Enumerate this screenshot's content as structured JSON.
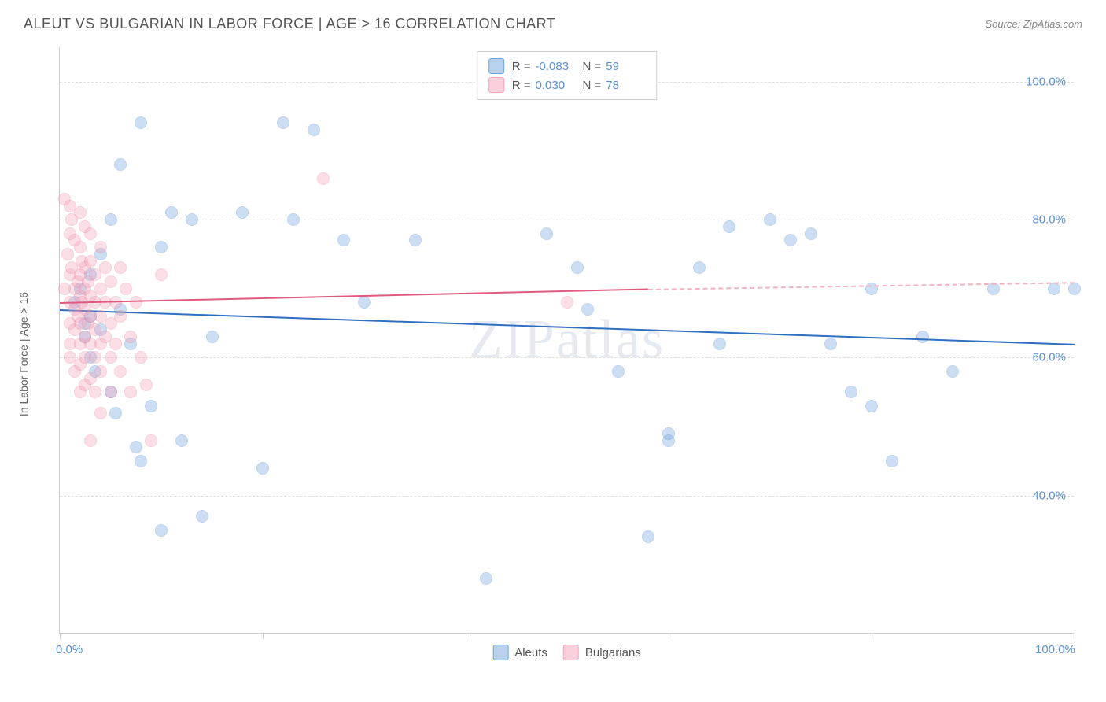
{
  "title": "ALEUT VS BULGARIAN IN LABOR FORCE | AGE > 16 CORRELATION CHART",
  "source": "Source: ZipAtlas.com",
  "watermark": "ZIPatlas",
  "chart": {
    "type": "scatter",
    "ylabel": "In Labor Force | Age > 16",
    "xlim": [
      0,
      100
    ],
    "ylim": [
      20,
      105
    ],
    "x_ticks": [
      0,
      20,
      40,
      60,
      80,
      100
    ],
    "x_tick_labels_shown": {
      "0": "0.0%",
      "100": "100.0%"
    },
    "y_gridlines": [
      40,
      60,
      80,
      100
    ],
    "y_tick_labels": {
      "40": "40.0%",
      "60": "60.0%",
      "80": "80.0%",
      "100": "100.0%"
    },
    "grid_color": "#dddddd",
    "background_color": "#ffffff",
    "axis_color": "#cccccc",
    "ylabel_fontsize": 14,
    "tick_label_color": "#5b8fd6",
    "tick_label_fontsize": 15,
    "point_radius": 8,
    "point_opacity_fill": 0.35,
    "point_opacity_stroke": 0.7,
    "series": [
      {
        "name": "Aleuts",
        "color": "#6fa3e0",
        "stroke": "#4a7fc4",
        "R": "-0.083",
        "N": "59",
        "trend": {
          "x1": 0,
          "y1": 67,
          "x2": 100,
          "y2": 62,
          "color": "#2f6fc0",
          "width": 2
        },
        "points": [
          [
            1.5,
            68
          ],
          [
            2,
            70
          ],
          [
            2.5,
            65
          ],
          [
            2.5,
            63
          ],
          [
            3,
            66
          ],
          [
            3,
            60
          ],
          [
            3,
            72
          ],
          [
            3.5,
            58
          ],
          [
            4,
            64
          ],
          [
            4,
            75
          ],
          [
            5,
            80
          ],
          [
            5,
            55
          ],
          [
            5.5,
            52
          ],
          [
            6,
            88
          ],
          [
            6,
            67
          ],
          [
            7,
            62
          ],
          [
            7.5,
            47
          ],
          [
            8,
            94
          ],
          [
            8,
            45
          ],
          [
            9,
            53
          ],
          [
            10,
            76
          ],
          [
            10,
            35
          ],
          [
            11,
            81
          ],
          [
            12,
            48
          ],
          [
            13,
            80
          ],
          [
            14,
            37
          ],
          [
            15,
            63
          ],
          [
            18,
            81
          ],
          [
            20,
            44
          ],
          [
            22,
            94
          ],
          [
            23,
            80
          ],
          [
            25,
            93
          ],
          [
            28,
            77
          ],
          [
            30,
            68
          ],
          [
            35,
            77
          ],
          [
            42,
            28
          ],
          [
            48,
            78
          ],
          [
            51,
            73
          ],
          [
            52,
            67
          ],
          [
            55,
            58
          ],
          [
            58,
            34
          ],
          [
            60,
            48
          ],
          [
            60,
            49
          ],
          [
            63,
            73
          ],
          [
            65,
            62
          ],
          [
            66,
            79
          ],
          [
            70,
            80
          ],
          [
            72,
            77
          ],
          [
            74,
            78
          ],
          [
            76,
            62
          ],
          [
            78,
            55
          ],
          [
            80,
            53
          ],
          [
            80,
            70
          ],
          [
            82,
            45
          ],
          [
            85,
            63
          ],
          [
            88,
            58
          ],
          [
            92,
            70
          ],
          [
            98,
            70
          ],
          [
            100,
            70
          ]
        ]
      },
      {
        "name": "Bulgarians",
        "color": "#f4a3b8",
        "stroke": "#e57a96",
        "R": "0.030",
        "N": "78",
        "trend_solid": {
          "x1": 0,
          "y1": 68,
          "x2": 58,
          "y2": 70,
          "color": "#e05a7e",
          "width": 2
        },
        "trend_dash": {
          "x1": 58,
          "y1": 70,
          "x2": 100,
          "y2": 71,
          "color": "#f0b3c2",
          "width": 2
        },
        "points": [
          [
            0.5,
            83
          ],
          [
            0.5,
            70
          ],
          [
            0.8,
            75
          ],
          [
            1,
            82
          ],
          [
            1,
            78
          ],
          [
            1,
            72
          ],
          [
            1,
            68
          ],
          [
            1,
            65
          ],
          [
            1,
            62
          ],
          [
            1,
            60
          ],
          [
            1.2,
            80
          ],
          [
            1.2,
            73
          ],
          [
            1.5,
            77
          ],
          [
            1.5,
            70
          ],
          [
            1.5,
            67
          ],
          [
            1.5,
            64
          ],
          [
            1.5,
            58
          ],
          [
            1.8,
            71
          ],
          [
            1.8,
            66
          ],
          [
            2,
            81
          ],
          [
            2,
            76
          ],
          [
            2,
            72
          ],
          [
            2,
            69
          ],
          [
            2,
            65
          ],
          [
            2,
            62
          ],
          [
            2,
            59
          ],
          [
            2,
            55
          ],
          [
            2.2,
            74
          ],
          [
            2.2,
            68
          ],
          [
            2.5,
            79
          ],
          [
            2.5,
            73
          ],
          [
            2.5,
            70
          ],
          [
            2.5,
            67
          ],
          [
            2.5,
            63
          ],
          [
            2.5,
            60
          ],
          [
            2.5,
            56
          ],
          [
            2.8,
            71
          ],
          [
            2.8,
            65
          ],
          [
            3,
            78
          ],
          [
            3,
            74
          ],
          [
            3,
            69
          ],
          [
            3,
            66
          ],
          [
            3,
            62
          ],
          [
            3,
            57
          ],
          [
            3,
            48
          ],
          [
            3.5,
            72
          ],
          [
            3.5,
            68
          ],
          [
            3.5,
            64
          ],
          [
            3.5,
            60
          ],
          [
            3.5,
            55
          ],
          [
            4,
            76
          ],
          [
            4,
            70
          ],
          [
            4,
            66
          ],
          [
            4,
            62
          ],
          [
            4,
            58
          ],
          [
            4,
            52
          ],
          [
            4.5,
            73
          ],
          [
            4.5,
            68
          ],
          [
            4.5,
            63
          ],
          [
            5,
            71
          ],
          [
            5,
            65
          ],
          [
            5,
            60
          ],
          [
            5,
            55
          ],
          [
            5.5,
            68
          ],
          [
            5.5,
            62
          ],
          [
            6,
            73
          ],
          [
            6,
            66
          ],
          [
            6,
            58
          ],
          [
            6.5,
            70
          ],
          [
            7,
            63
          ],
          [
            7,
            55
          ],
          [
            7.5,
            68
          ],
          [
            8,
            60
          ],
          [
            8.5,
            56
          ],
          [
            9,
            48
          ],
          [
            10,
            72
          ],
          [
            26,
            86
          ],
          [
            50,
            68
          ]
        ]
      }
    ],
    "legend_top": {
      "border_color": "#cccccc",
      "bg": "#ffffff",
      "rows": [
        {
          "swatch_fill": "#b8d1ed",
          "swatch_stroke": "#6fa3e0",
          "R_label": "R =",
          "R_val": "-0.083",
          "N_label": "N =",
          "N_val": "59"
        },
        {
          "swatch_fill": "#fbd0dc",
          "swatch_stroke": "#f4a3b8",
          "R_label": "R =",
          "R_val": " 0.030",
          "N_label": "N =",
          "N_val": "78"
        }
      ]
    },
    "legend_bottom": [
      {
        "swatch_fill": "#b8d1ed",
        "swatch_stroke": "#6fa3e0",
        "label": "Aleuts"
      },
      {
        "swatch_fill": "#fbd0dc",
        "swatch_stroke": "#f4a3b8",
        "label": "Bulgarians"
      }
    ]
  }
}
